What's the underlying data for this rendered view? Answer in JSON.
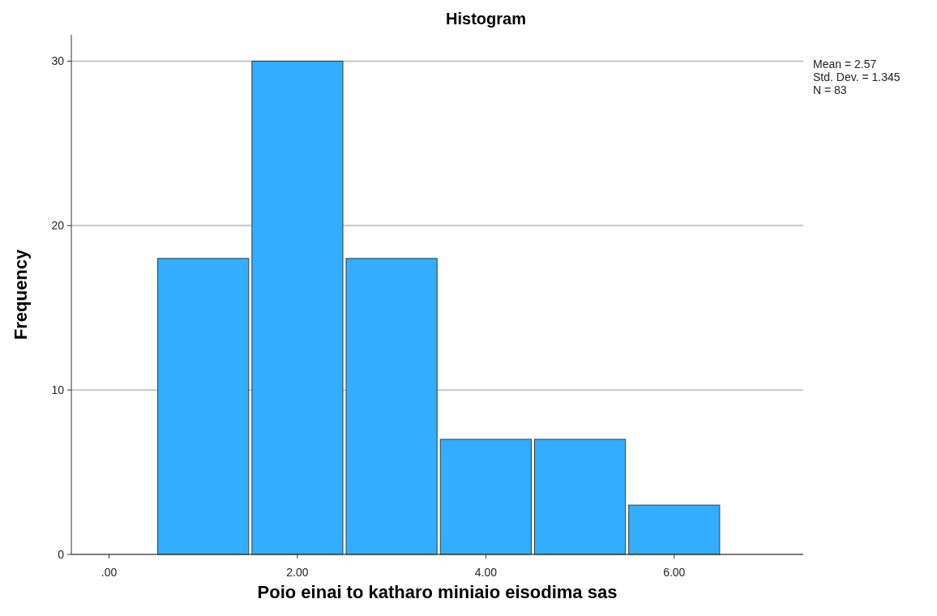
{
  "chart_data": {
    "type": "histogram",
    "title": "Histogram",
    "xlabel": "Poio einai to katharo miniaio eisodima sas",
    "ylabel": "Frequency",
    "bins": [
      0.5,
      1.5,
      2.5,
      3.5,
      4.5,
      5.5,
      6.5
    ],
    "values": [
      18,
      30,
      18,
      7,
      7,
      3
    ],
    "color": "#33adff",
    "xlim": [
      -0.4,
      7.37
    ],
    "xticks": [
      {
        "value": 0,
        "label": ".00"
      },
      {
        "value": 2,
        "label": "2.00"
      },
      {
        "value": 4,
        "label": "4.00"
      },
      {
        "value": 6,
        "label": "6.00"
      }
    ],
    "ylim": [
      0,
      31.6
    ],
    "yticks": [
      0,
      10,
      20,
      30
    ],
    "grid": "y",
    "annotations": [
      "Mean = 2.57",
      "Std. Dev. = 1.345",
      "N = 83"
    ]
  }
}
